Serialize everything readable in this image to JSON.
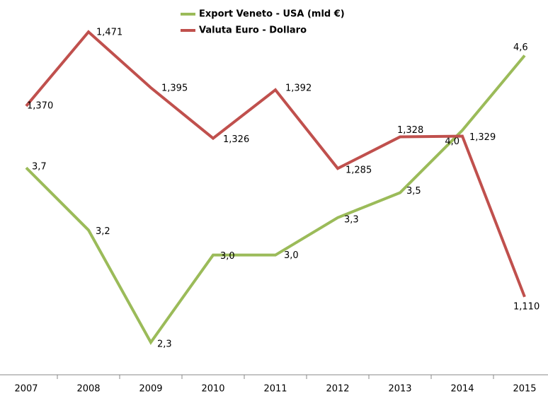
{
  "chart_data": {
    "type": "line",
    "categories": [
      "2007",
      "2008",
      "2009",
      "2010",
      "2011",
      "2012",
      "2013",
      "2014",
      "2015"
    ],
    "series": [
      {
        "name": "Export Veneto - USA (mld €)",
        "color": "#9bbb59",
        "values": [
          3.7,
          3.2,
          2.3,
          3.0,
          3.0,
          3.3,
          3.5,
          4.0,
          4.6
        ],
        "value_labels": [
          "3,7",
          "3,2",
          "2,3",
          "3,0",
          "3,0",
          "3,3",
          "3,5",
          "4,0",
          "4,6"
        ]
      },
      {
        "name": "Valuta Euro - Dollaro",
        "color": "#c0504d",
        "axis": "y2",
        "values": [
          1.37,
          1.471,
          1.395,
          1.326,
          1.392,
          1.285,
          1.328,
          1.329,
          1.11
        ],
        "value_labels": [
          "1,370",
          "1,471",
          "1,395",
          "1,326",
          "1,392",
          "1,285",
          "1,328",
          "1,329",
          "1,110"
        ]
      }
    ],
    "ylim": [
      2,
      5
    ],
    "y2lim": [
      1,
      1.5
    ],
    "legend": "top"
  }
}
